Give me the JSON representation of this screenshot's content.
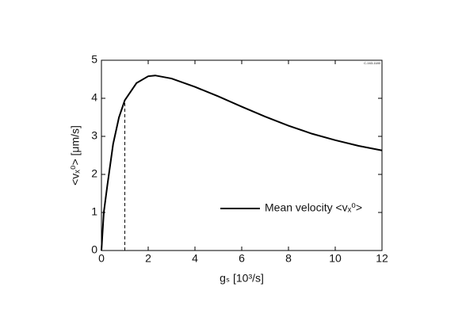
{
  "chart_data": {
    "type": "line",
    "xlabel": "gₛ  [10³/s]",
    "ylabel": "<vₓ⁰>  [μm/s]",
    "annotation": "C-163-1180",
    "x": [
      0,
      0.1,
      0.25,
      0.5,
      0.75,
      1,
      1.5,
      2,
      2.3,
      3,
      4,
      5,
      6,
      7,
      8,
      9,
      10,
      11,
      12
    ],
    "series": [
      {
        "name": "Mean velocity <vₓ⁰>",
        "color": "#000000",
        "values": [
          0,
          1.0,
          1.7,
          2.8,
          3.5,
          3.95,
          4.4,
          4.58,
          4.6,
          4.52,
          4.3,
          4.05,
          3.78,
          3.52,
          3.28,
          3.07,
          2.9,
          2.75,
          2.63
        ]
      }
    ],
    "reference_line": {
      "x": 1,
      "y_end": 3.95
    },
    "xlim": [
      0,
      12
    ],
    "xticks": [
      0,
      2,
      4,
      6,
      8,
      10,
      12
    ],
    "ylim": [
      0,
      5
    ],
    "yticks": [
      0,
      1,
      2,
      3,
      4,
      5
    ],
    "grid": false
  }
}
